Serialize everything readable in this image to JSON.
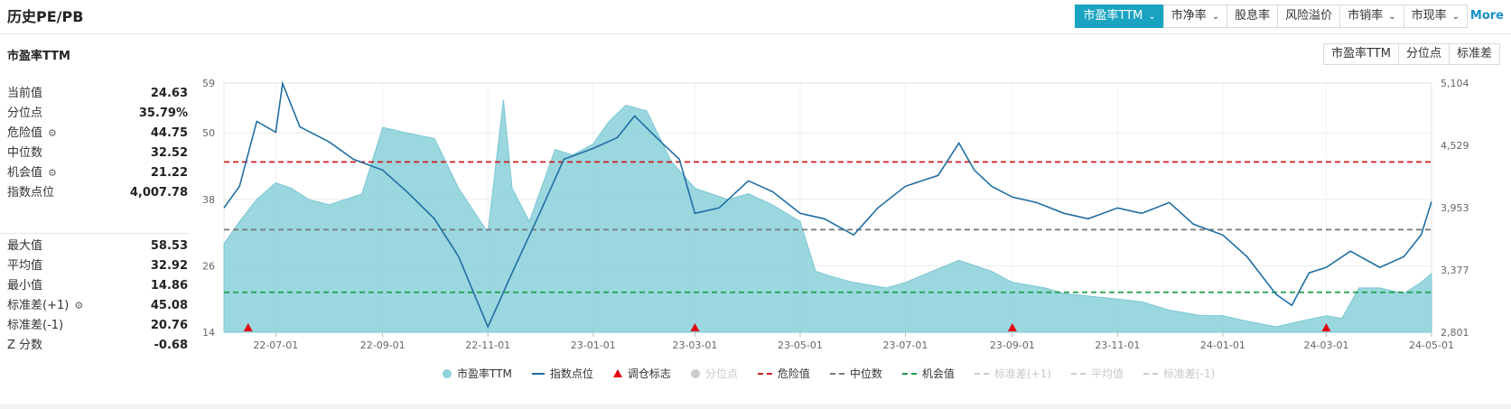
{
  "header": {
    "title": "历史PE/PB",
    "tabs": [
      {
        "label": "市盈率TTM",
        "dropdown": true,
        "active": true
      },
      {
        "label": "市净率",
        "dropdown": true,
        "active": false
      },
      {
        "label": "股息率",
        "dropdown": false,
        "active": false
      },
      {
        "label": "风险溢价",
        "dropdown": false,
        "active": false
      },
      {
        "label": "市销率",
        "dropdown": true,
        "active": false
      },
      {
        "label": "市现率",
        "dropdown": true,
        "active": false
      }
    ],
    "more": "More"
  },
  "panel": {
    "subtitle": "市盈率TTM",
    "view_tabs": [
      "市盈率TTM",
      "分位点",
      "标准差"
    ]
  },
  "stats_top": [
    {
      "label": "当前值",
      "value": "24.63"
    },
    {
      "label": "分位点",
      "value": "35.79%"
    },
    {
      "label": "危险值",
      "value": "44.75",
      "gear": true
    },
    {
      "label": "中位数",
      "value": "32.52"
    },
    {
      "label": "机会值",
      "value": "21.22",
      "gear": true
    },
    {
      "label": "指数点位",
      "value": "4,007.78"
    }
  ],
  "stats_bottom": [
    {
      "label": "最大值",
      "value": "58.53"
    },
    {
      "label": "平均值",
      "value": "32.92"
    },
    {
      "label": "最小值",
      "value": "14.86"
    },
    {
      "label": "标准差(+1)",
      "value": "45.08",
      "gear": true
    },
    {
      "label": "标准差(-1)",
      "value": "20.76"
    },
    {
      "label": "Z 分数",
      "value": "-0.68"
    }
  ],
  "colors": {
    "accent": "#1aa3c1",
    "area": "#8fd3dc",
    "line": "#1f6ea3",
    "danger": "#cc1f1f",
    "median": "#777777",
    "chance": "#1f9e4a",
    "marker": "#e60012"
  },
  "chart_data": {
    "type": "area",
    "x_ticks": [
      "22-07-01",
      "22-09-01",
      "22-11-01",
      "23-01-01",
      "23-03-01",
      "23-05-01",
      "23-07-01",
      "23-09-01",
      "23-11-01",
      "24-01-01",
      "24-03-01",
      "24-05-01"
    ],
    "y_left_ticks": [
      "14",
      "26",
      "38",
      "50",
      "59"
    ],
    "y_right_ticks": [
      "2,801",
      "3,377",
      "3,953",
      "4,529",
      "5,104"
    ],
    "ylim_left": [
      14,
      59
    ],
    "ylim_right": [
      2801,
      5104
    ],
    "xlim": [
      "2022-06-01",
      "2024-05-01"
    ],
    "reference_lines": [
      {
        "name": "危险值",
        "value": 44.75,
        "style": "dashed",
        "color": "#cc1f1f"
      },
      {
        "name": "中位数",
        "value": 32.52,
        "style": "dashed",
        "color": "#777777"
      },
      {
        "name": "机会值",
        "value": 21.22,
        "style": "dashed",
        "color": "#1f9e4a"
      }
    ],
    "series": [
      {
        "name": "市盈率TTM",
        "axis": "left",
        "kind": "area",
        "points": [
          [
            "2022-06-01",
            30
          ],
          [
            "2022-06-10",
            34
          ],
          [
            "2022-06-20",
            38
          ],
          [
            "2022-07-01",
            41
          ],
          [
            "2022-07-10",
            40
          ],
          [
            "2022-07-20",
            38
          ],
          [
            "2022-08-01",
            37
          ],
          [
            "2022-08-20",
            39
          ],
          [
            "2022-09-01",
            51
          ],
          [
            "2022-09-15",
            50
          ],
          [
            "2022-10-01",
            49
          ],
          [
            "2022-10-15",
            40
          ],
          [
            "2022-11-01",
            32
          ],
          [
            "2022-11-10",
            56
          ],
          [
            "2022-11-15",
            40
          ],
          [
            "2022-11-25",
            34
          ],
          [
            "2022-12-10",
            47
          ],
          [
            "2022-12-20",
            46
          ],
          [
            "2023-01-01",
            48
          ],
          [
            "2023-01-10",
            52
          ],
          [
            "2023-01-20",
            55
          ],
          [
            "2023-02-01",
            54
          ],
          [
            "2023-02-15",
            45
          ],
          [
            "2023-03-01",
            40
          ],
          [
            "2023-03-20",
            38
          ],
          [
            "2023-04-01",
            39
          ],
          [
            "2023-04-15",
            37
          ],
          [
            "2023-05-01",
            34
          ],
          [
            "2023-05-10",
            25
          ],
          [
            "2023-05-20",
            24
          ],
          [
            "2023-06-01",
            23
          ],
          [
            "2023-06-20",
            22
          ],
          [
            "2023-07-01",
            23
          ],
          [
            "2023-08-01",
            27
          ],
          [
            "2023-08-20",
            25
          ],
          [
            "2023-09-01",
            23
          ],
          [
            "2023-09-20",
            22
          ],
          [
            "2023-10-01",
            21
          ],
          [
            "2023-11-01",
            20
          ],
          [
            "2023-11-15",
            19.5
          ],
          [
            "2023-12-01",
            18
          ],
          [
            "2023-12-20",
            17
          ],
          [
            "2024-01-01",
            17
          ],
          [
            "2024-01-15",
            16
          ],
          [
            "2024-02-01",
            15
          ],
          [
            "2024-02-15",
            16
          ],
          [
            "2024-03-01",
            17
          ],
          [
            "2024-03-10",
            16.5
          ],
          [
            "2024-03-20",
            22
          ],
          [
            "2024-04-01",
            22
          ],
          [
            "2024-04-15",
            21
          ],
          [
            "2024-04-25",
            23
          ],
          [
            "2024-05-01",
            24.6
          ]
        ]
      },
      {
        "name": "指数点位",
        "axis": "right",
        "kind": "line",
        "points": [
          [
            "2022-06-01",
            3950
          ],
          [
            "2022-06-10",
            4150
          ],
          [
            "2022-06-20",
            4750
          ],
          [
            "2022-07-01",
            4650
          ],
          [
            "2022-07-05",
            5100
          ],
          [
            "2022-07-15",
            4700
          ],
          [
            "2022-08-01",
            4560
          ],
          [
            "2022-08-15",
            4400
          ],
          [
            "2022-09-01",
            4300
          ],
          [
            "2022-09-15",
            4100
          ],
          [
            "2022-10-01",
            3850
          ],
          [
            "2022-10-15",
            3500
          ],
          [
            "2022-11-01",
            2850
          ],
          [
            "2022-11-15",
            3350
          ],
          [
            "2022-12-01",
            3900
          ],
          [
            "2022-12-15",
            4400
          ],
          [
            "2023-01-01",
            4500
          ],
          [
            "2023-01-15",
            4600
          ],
          [
            "2023-01-25",
            4800
          ],
          [
            "2023-02-10",
            4550
          ],
          [
            "2023-02-20",
            4400
          ],
          [
            "2023-03-01",
            3900
          ],
          [
            "2023-03-15",
            3950
          ],
          [
            "2023-04-01",
            4200
          ],
          [
            "2023-04-15",
            4100
          ],
          [
            "2023-05-01",
            3900
          ],
          [
            "2023-05-15",
            3850
          ],
          [
            "2023-06-01",
            3700
          ],
          [
            "2023-06-15",
            3950
          ],
          [
            "2023-07-01",
            4150
          ],
          [
            "2023-07-20",
            4250
          ],
          [
            "2023-08-01",
            4550
          ],
          [
            "2023-08-10",
            4300
          ],
          [
            "2023-08-20",
            4150
          ],
          [
            "2023-09-01",
            4050
          ],
          [
            "2023-09-15",
            4000
          ],
          [
            "2023-10-01",
            3900
          ],
          [
            "2023-10-15",
            3850
          ],
          [
            "2023-11-01",
            3950
          ],
          [
            "2023-11-15",
            3900
          ],
          [
            "2023-12-01",
            4000
          ],
          [
            "2023-12-15",
            3800
          ],
          [
            "2024-01-01",
            3700
          ],
          [
            "2024-01-15",
            3500
          ],
          [
            "2024-02-01",
            3150
          ],
          [
            "2024-02-10",
            3050
          ],
          [
            "2024-02-20",
            3350
          ],
          [
            "2024-03-01",
            3400
          ],
          [
            "2024-03-15",
            3550
          ],
          [
            "2024-04-01",
            3400
          ],
          [
            "2024-04-15",
            3500
          ],
          [
            "2024-04-25",
            3700
          ],
          [
            "2024-05-01",
            4008
          ]
        ]
      }
    ],
    "markers": {
      "name": "调仓标志",
      "dates": [
        "2022-06-15",
        "2023-03-01",
        "2023-09-01",
        "2024-03-01"
      ]
    },
    "legend": {
      "placement": "bottom",
      "items": [
        {
          "label": "市盈率TTM",
          "symbol": "circle",
          "color": "#8fd3dc",
          "active": true
        },
        {
          "label": "指数点位",
          "symbol": "line",
          "color": "#1f6ea3",
          "active": true
        },
        {
          "label": "调仓标志",
          "symbol": "triangle",
          "color": "#e60012",
          "active": true
        },
        {
          "label": "分位点",
          "symbol": "circle",
          "color": "#cccccc",
          "active": false
        },
        {
          "label": "危险值",
          "symbol": "dash",
          "color": "#cc1f1f",
          "active": true
        },
        {
          "label": "中位数",
          "symbol": "dash",
          "color": "#777777",
          "active": true
        },
        {
          "label": "机会值",
          "symbol": "dash",
          "color": "#1f9e4a",
          "active": true
        },
        {
          "label": "标准差(+1)",
          "symbol": "dash",
          "color": "#cccccc",
          "active": false
        },
        {
          "label": "平均值",
          "symbol": "dash",
          "color": "#cccccc",
          "active": false
        },
        {
          "label": "标准差(-1)",
          "symbol": "dash",
          "color": "#cccccc",
          "active": false
        }
      ]
    }
  }
}
